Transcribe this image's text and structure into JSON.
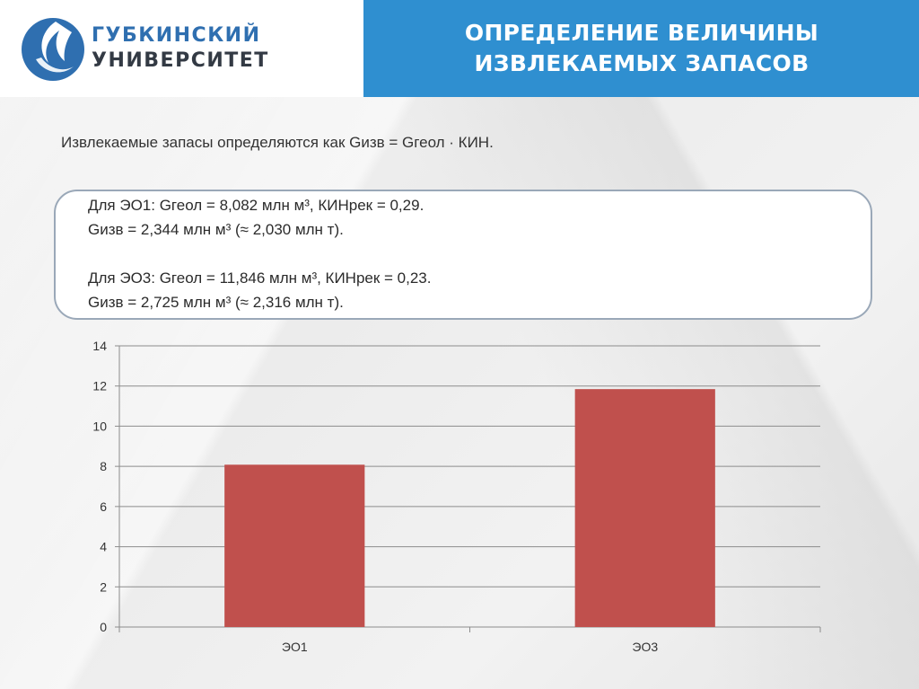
{
  "header": {
    "logo_line1": "ГУБКИНСКИЙ",
    "logo_line2": "УНИВЕРСИТЕТ",
    "title_line1": "ОПРЕДЕЛЕНИЕ ВЕЛИЧИНЫ",
    "title_line2": "ИЗВЛЕКАЕМЫХ ЗАПАСОВ"
  },
  "intro": "Извлекаемые запасы определяются как Gизв = Gгеол · КИН.",
  "infobox": {
    "eo1_line1": "Для ЭО1: Gгеол = 8,082 млн м³, КИНрек = 0,29.",
    "eo1_line2": "Gизв = 2,344 млн м³ (≈ 2,030 млн т).",
    "eo3_line1": "Для ЭО3: Gгеол = 11,846 млн м³, КИНрек = 0,23.",
    "eo3_line2": "Gизв = 2,725 млн м³ (≈ 2,316 млн т)."
  },
  "colors": {
    "header_blue": "#2f8fd0",
    "bar": "#c0504d",
    "logo_blue": "#2f6fb0"
  },
  "chart_data": {
    "type": "bar",
    "categories": [
      "ЭО1",
      "ЭО3"
    ],
    "values": [
      8.082,
      11.846
    ],
    "ylim": [
      0,
      14
    ],
    "yticks": [
      0,
      2,
      4,
      6,
      8,
      10,
      12,
      14
    ],
    "title": "",
    "xlabel": "",
    "ylabel": "",
    "grid": true,
    "legend": "none"
  }
}
